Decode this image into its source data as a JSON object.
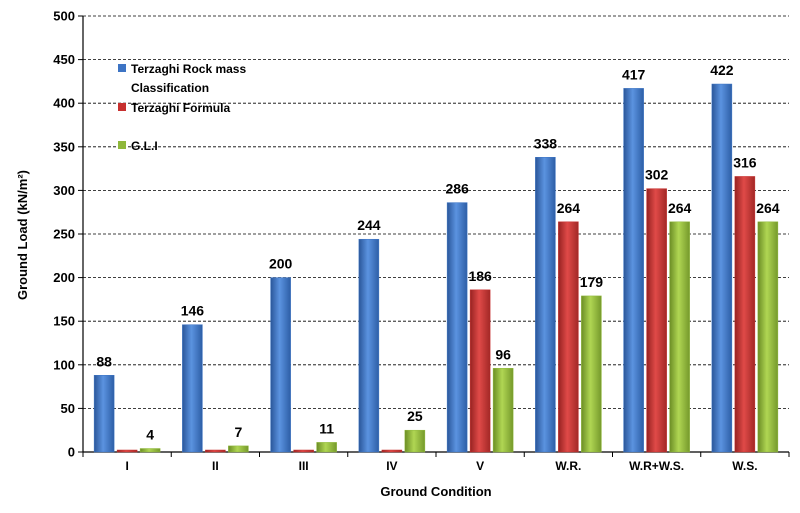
{
  "chart_data": {
    "type": "bar",
    "title": "",
    "xlabel": "Ground Condition",
    "ylabel": "Ground Load (kN/m²)",
    "ylim": [
      0,
      500
    ],
    "yticks": [
      0,
      50,
      100,
      150,
      200,
      250,
      300,
      350,
      400,
      450,
      500
    ],
    "grid": "horizontal dashed",
    "legend_position": "top-left",
    "categories": [
      "I",
      "II",
      "III",
      "IV",
      "V",
      "W.R.",
      "W.R+W.S.",
      "W.S."
    ],
    "series": [
      {
        "name": "Terzaghi Rock mass Classification",
        "color": "#3d74c4",
        "values": [
          88,
          146,
          200,
          244,
          286,
          338,
          417,
          422
        ],
        "labels": [
          "88",
          "146",
          "200",
          "244",
          "286",
          "338",
          "417",
          "422"
        ]
      },
      {
        "name": "Terzaghi Formula",
        "color": "#c7302f",
        "values": [
          0,
          0,
          0,
          0,
          186,
          264,
          302,
          316
        ],
        "labels": [
          "",
          "",
          "",
          "",
          "186",
          "264",
          "302",
          "316"
        ]
      },
      {
        "name": "G.L.I",
        "color": "#8fb83b",
        "values": [
          4,
          7,
          11,
          25,
          96,
          179,
          264,
          264
        ],
        "labels": [
          "4",
          "7",
          "11",
          "25",
          "96",
          "179",
          "264",
          "264"
        ]
      }
    ]
  }
}
